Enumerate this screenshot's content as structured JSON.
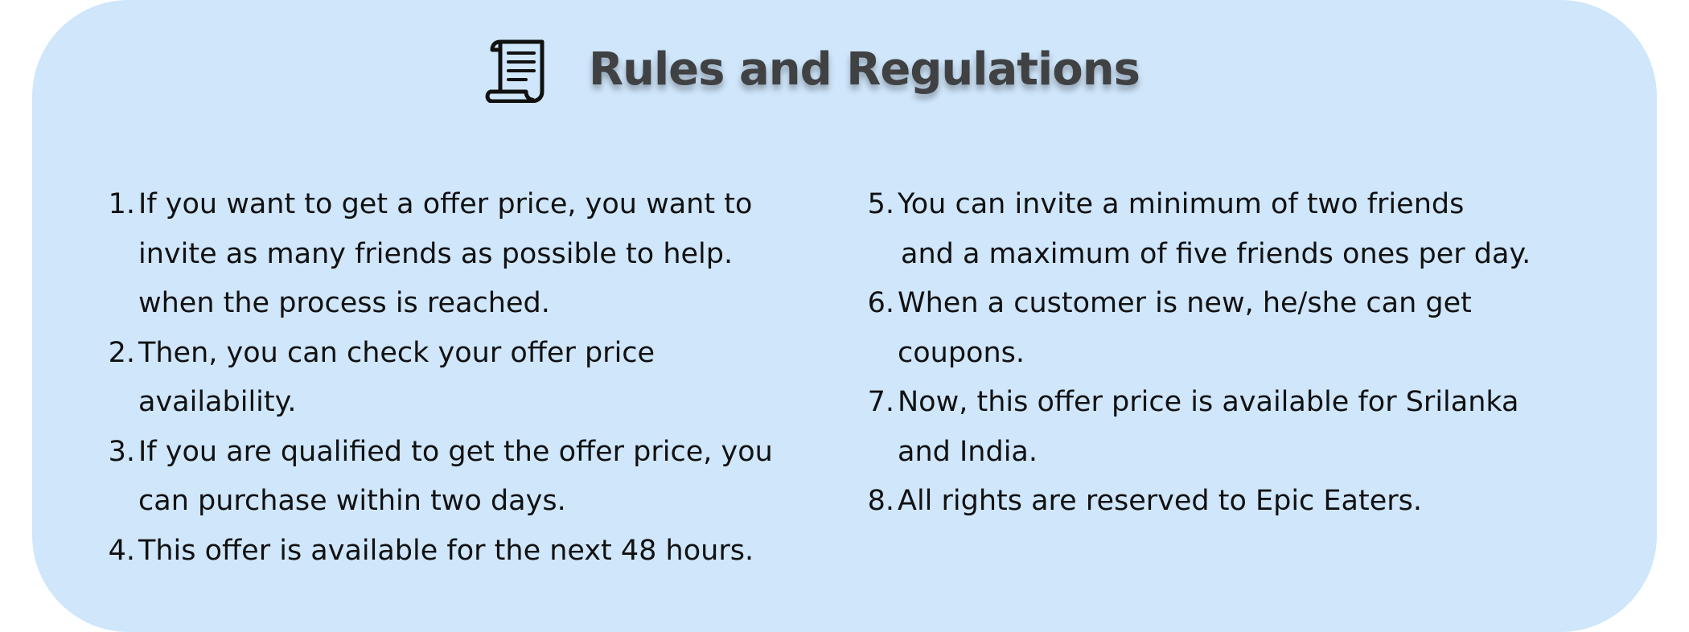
{
  "header": {
    "title": "Rules and Regulations",
    "icon": "scroll-document-icon"
  },
  "rules_left": [
    {
      "number": "1.",
      "lines": [
        "If you want to get a offer price, you want to",
        "invite as many friends as possible to help.",
        "when the process is reached."
      ]
    },
    {
      "number": "2.",
      "lines": [
        "Then, you can check your offer price",
        "availability."
      ]
    },
    {
      "number": "3.",
      "lines": [
        "If you are qualified to get the offer price, you",
        "can purchase within two days."
      ]
    },
    {
      "number": "4.",
      "lines": [
        "This offer is available for the next 48 hours."
      ]
    }
  ],
  "rules_right": [
    {
      "number": "5.",
      "lines": [
        "You can invite a minimum of two friends",
        "and a maximum of five friends ones per day."
      ]
    },
    {
      "number": "6.",
      "lines": [
        "When a customer is new, he/she can get",
        "coupons."
      ]
    },
    {
      "number": "7.",
      "lines": [
        "Now, this offer price is available for Srilanka",
        "and India."
      ]
    },
    {
      "number": "8.",
      "lines": [
        "All rights are reserved to Epic Eaters."
      ]
    }
  ],
  "colors": {
    "card_background": "#cfe6fb",
    "title_text": "#3f4143",
    "body_text": "#111111"
  }
}
